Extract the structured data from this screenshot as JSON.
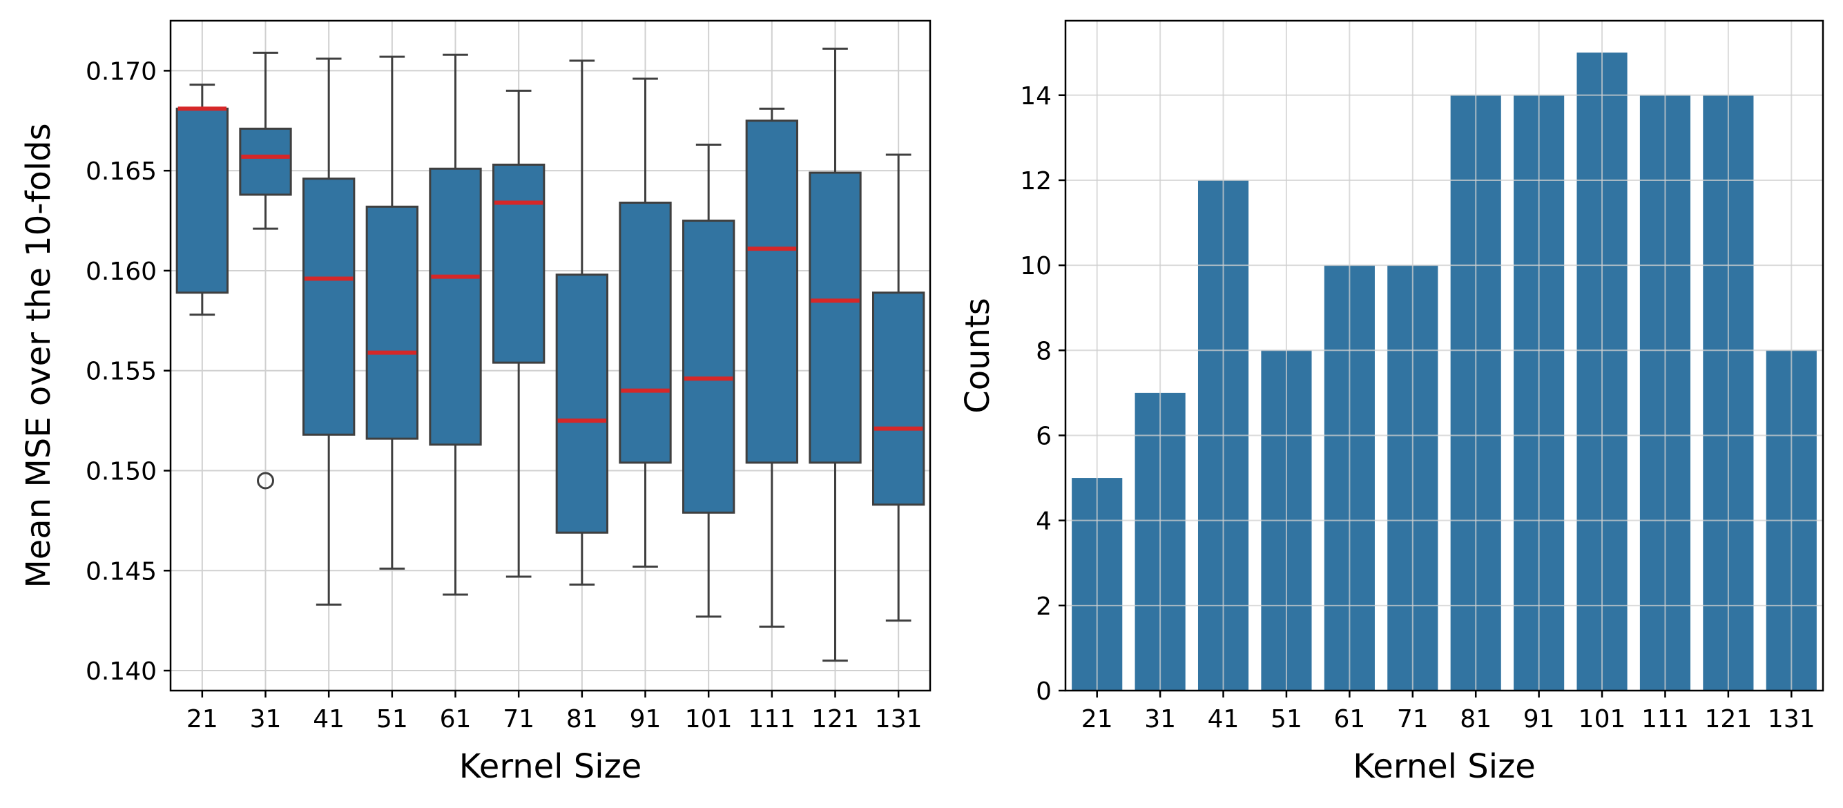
{
  "colors": {
    "box_fill": "#3274a1",
    "box_edge": "#3f3f3f",
    "median": "#d62728",
    "bar_fill": "#3274a1",
    "grid": "#d0d0d0"
  },
  "chart_data": [
    {
      "type": "box",
      "title": "",
      "xlabel": "Kernel Size",
      "ylabel": "Mean MSE over the 10-folds",
      "categories": [
        "21",
        "31",
        "41",
        "51",
        "61",
        "71",
        "81",
        "91",
        "101",
        "111",
        "121",
        "131"
      ],
      "ylim": [
        0.139,
        0.1725
      ],
      "yticks": [
        0.14,
        0.145,
        0.15,
        0.155,
        0.16,
        0.165,
        0.17
      ],
      "ytick_labels": [
        "0.140",
        "0.145",
        "0.150",
        "0.155",
        "0.160",
        "0.165",
        "0.170"
      ],
      "grid": true,
      "boxes": [
        {
          "whislo": 0.1578,
          "q1": 0.1589,
          "med": 0.1681,
          "q3": 0.1681,
          "whishi": 0.1693,
          "fliers": []
        },
        {
          "whislo": 0.1621,
          "q1": 0.1638,
          "med": 0.1657,
          "q3": 0.1671,
          "whishi": 0.1709,
          "fliers": [
            0.1495
          ]
        },
        {
          "whislo": 0.1433,
          "q1": 0.1518,
          "med": 0.1596,
          "q3": 0.1646,
          "whishi": 0.1706,
          "fliers": []
        },
        {
          "whislo": 0.1451,
          "q1": 0.1516,
          "med": 0.1559,
          "q3": 0.1632,
          "whishi": 0.1707,
          "fliers": []
        },
        {
          "whislo": 0.1438,
          "q1": 0.1513,
          "med": 0.1597,
          "q3": 0.1651,
          "whishi": 0.1708,
          "fliers": []
        },
        {
          "whislo": 0.1447,
          "q1": 0.1554,
          "med": 0.1634,
          "q3": 0.1653,
          "whishi": 0.169,
          "fliers": []
        },
        {
          "whislo": 0.1443,
          "q1": 0.1469,
          "med": 0.1525,
          "q3": 0.1598,
          "whishi": 0.1705,
          "fliers": []
        },
        {
          "whislo": 0.1452,
          "q1": 0.1504,
          "med": 0.154,
          "q3": 0.1634,
          "whishi": 0.1696,
          "fliers": []
        },
        {
          "whislo": 0.1427,
          "q1": 0.1479,
          "med": 0.1546,
          "q3": 0.1625,
          "whishi": 0.1663,
          "fliers": []
        },
        {
          "whislo": 0.1422,
          "q1": 0.1504,
          "med": 0.1611,
          "q3": 0.1675,
          "whishi": 0.1681,
          "fliers": []
        },
        {
          "whislo": 0.1405,
          "q1": 0.1504,
          "med": 0.1585,
          "q3": 0.1649,
          "whishi": 0.1711,
          "fliers": []
        },
        {
          "whislo": 0.1425,
          "q1": 0.1483,
          "med": 0.1521,
          "q3": 0.1589,
          "whishi": 0.1658,
          "fliers": []
        }
      ]
    },
    {
      "type": "bar",
      "title": "",
      "xlabel": "Kernel Size",
      "ylabel": "Counts",
      "categories": [
        "21",
        "31",
        "41",
        "51",
        "61",
        "71",
        "81",
        "91",
        "101",
        "111",
        "121",
        "131"
      ],
      "values": [
        5,
        7,
        12,
        8,
        10,
        10,
        14,
        14,
        15,
        14,
        14,
        8
      ],
      "ylim": [
        0,
        15.75
      ],
      "yticks": [
        0,
        2,
        4,
        6,
        8,
        10,
        12,
        14
      ],
      "ytick_labels": [
        "0",
        "2",
        "4",
        "6",
        "8",
        "10",
        "12",
        "14"
      ],
      "grid": true
    }
  ]
}
